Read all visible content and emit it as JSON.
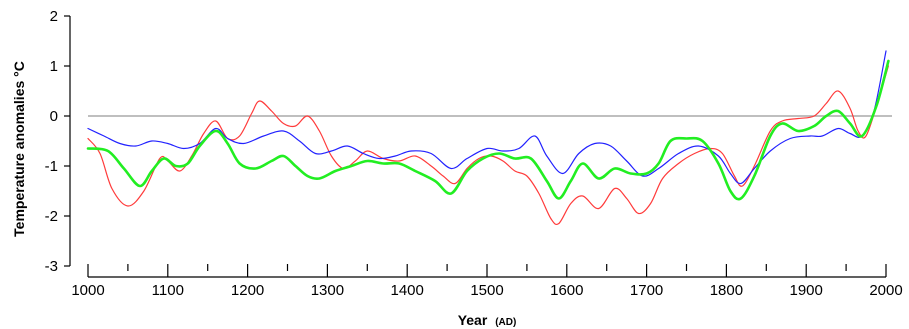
{
  "chart_data": {
    "type": "line",
    "title": "",
    "ylabel": "Temperature anomalies °C",
    "xlabel": {
      "main": "Year",
      "unit": "(AD)"
    },
    "xlim": [
      1000,
      2000
    ],
    "ylim": [
      -3,
      2
    ],
    "x_ticks": [
      1000,
      1100,
      1200,
      1300,
      1400,
      1500,
      1600,
      1700,
      1800,
      1900,
      2000
    ],
    "x_minor_ticks": [
      1050,
      1150,
      1250,
      1350,
      1450,
      1550,
      1650,
      1750,
      1850,
      1950
    ],
    "y_ticks": [
      -3,
      -2,
      -1,
      0,
      1,
      2
    ],
    "zero_line": true,
    "grid": false,
    "series": [
      {
        "color": "#ff3b3b",
        "points": [
          [
            1000,
            -0.45
          ],
          [
            1015,
            -0.75
          ],
          [
            1030,
            -1.45
          ],
          [
            1050,
            -1.8
          ],
          [
            1070,
            -1.5
          ],
          [
            1090,
            -0.85
          ],
          [
            1100,
            -0.9
          ],
          [
            1115,
            -1.1
          ],
          [
            1130,
            -0.8
          ],
          [
            1145,
            -0.35
          ],
          [
            1160,
            -0.1
          ],
          [
            1175,
            -0.45
          ],
          [
            1190,
            -0.4
          ],
          [
            1205,
            0.05
          ],
          [
            1215,
            0.3
          ],
          [
            1230,
            0.1
          ],
          [
            1245,
            -0.15
          ],
          [
            1260,
            -0.2
          ],
          [
            1275,
            0.0
          ],
          [
            1290,
            -0.3
          ],
          [
            1305,
            -0.8
          ],
          [
            1320,
            -1.05
          ],
          [
            1335,
            -0.9
          ],
          [
            1350,
            -0.7
          ],
          [
            1370,
            -0.85
          ],
          [
            1390,
            -0.9
          ],
          [
            1410,
            -0.8
          ],
          [
            1430,
            -1.0
          ],
          [
            1445,
            -1.2
          ],
          [
            1460,
            -1.35
          ],
          [
            1475,
            -1.05
          ],
          [
            1490,
            -0.85
          ],
          [
            1505,
            -0.8
          ],
          [
            1520,
            -0.9
          ],
          [
            1535,
            -1.1
          ],
          [
            1550,
            -1.2
          ],
          [
            1565,
            -1.55
          ],
          [
            1580,
            -2.05
          ],
          [
            1590,
            -2.15
          ],
          [
            1605,
            -1.75
          ],
          [
            1620,
            -1.6
          ],
          [
            1640,
            -1.85
          ],
          [
            1660,
            -1.45
          ],
          [
            1675,
            -1.65
          ],
          [
            1690,
            -1.95
          ],
          [
            1705,
            -1.75
          ],
          [
            1720,
            -1.25
          ],
          [
            1740,
            -0.95
          ],
          [
            1760,
            -0.75
          ],
          [
            1780,
            -0.65
          ],
          [
            1795,
            -0.75
          ],
          [
            1810,
            -1.2
          ],
          [
            1820,
            -1.4
          ],
          [
            1835,
            -1.0
          ],
          [
            1855,
            -0.3
          ],
          [
            1870,
            -0.1
          ],
          [
            1890,
            -0.05
          ],
          [
            1910,
            0.0
          ],
          [
            1925,
            0.25
          ],
          [
            1940,
            0.5
          ],
          [
            1955,
            0.15
          ],
          [
            1965,
            -0.3
          ],
          [
            1975,
            -0.4
          ],
          [
            1990,
            0.3
          ],
          [
            2003,
            1.0
          ]
        ]
      },
      {
        "color": "#2222ff",
        "points": [
          [
            1000,
            -0.25
          ],
          [
            1020,
            -0.4
          ],
          [
            1040,
            -0.55
          ],
          [
            1060,
            -0.6
          ],
          [
            1080,
            -0.5
          ],
          [
            1100,
            -0.55
          ],
          [
            1120,
            -0.65
          ],
          [
            1140,
            -0.55
          ],
          [
            1160,
            -0.25
          ],
          [
            1175,
            -0.45
          ],
          [
            1195,
            -0.55
          ],
          [
            1220,
            -0.4
          ],
          [
            1245,
            -0.3
          ],
          [
            1265,
            -0.5
          ],
          [
            1285,
            -0.75
          ],
          [
            1305,
            -0.7
          ],
          [
            1325,
            -0.6
          ],
          [
            1345,
            -0.75
          ],
          [
            1365,
            -0.85
          ],
          [
            1385,
            -0.8
          ],
          [
            1405,
            -0.7
          ],
          [
            1430,
            -0.75
          ],
          [
            1455,
            -1.05
          ],
          [
            1475,
            -0.85
          ],
          [
            1500,
            -0.65
          ],
          [
            1520,
            -0.7
          ],
          [
            1540,
            -0.65
          ],
          [
            1560,
            -0.4
          ],
          [
            1575,
            -0.8
          ],
          [
            1595,
            -1.15
          ],
          [
            1615,
            -0.75
          ],
          [
            1635,
            -0.55
          ],
          [
            1655,
            -0.6
          ],
          [
            1675,
            -0.9
          ],
          [
            1695,
            -1.2
          ],
          [
            1715,
            -1.05
          ],
          [
            1740,
            -0.75
          ],
          [
            1765,
            -0.6
          ],
          [
            1790,
            -0.8
          ],
          [
            1805,
            -1.15
          ],
          [
            1818,
            -1.35
          ],
          [
            1835,
            -1.05
          ],
          [
            1855,
            -0.7
          ],
          [
            1880,
            -0.45
          ],
          [
            1905,
            -0.4
          ],
          [
            1920,
            -0.4
          ],
          [
            1940,
            -0.25
          ],
          [
            1955,
            -0.35
          ],
          [
            1970,
            -0.4
          ],
          [
            1985,
            0.1
          ],
          [
            2000,
            1.3
          ]
        ]
      },
      {
        "color": "#22ee22",
        "points": [
          [
            1000,
            -0.65
          ],
          [
            1025,
            -0.7
          ],
          [
            1045,
            -1.05
          ],
          [
            1065,
            -1.4
          ],
          [
            1080,
            -1.1
          ],
          [
            1095,
            -0.85
          ],
          [
            1110,
            -1.0
          ],
          [
            1125,
            -0.95
          ],
          [
            1140,
            -0.6
          ],
          [
            1160,
            -0.3
          ],
          [
            1175,
            -0.55
          ],
          [
            1190,
            -0.95
          ],
          [
            1210,
            -1.05
          ],
          [
            1230,
            -0.9
          ],
          [
            1245,
            -0.8
          ],
          [
            1260,
            -1.0
          ],
          [
            1275,
            -1.2
          ],
          [
            1290,
            -1.25
          ],
          [
            1310,
            -1.1
          ],
          [
            1330,
            -1.0
          ],
          [
            1350,
            -0.9
          ],
          [
            1370,
            -0.95
          ],
          [
            1390,
            -0.95
          ],
          [
            1410,
            -1.1
          ],
          [
            1435,
            -1.3
          ],
          [
            1455,
            -1.55
          ],
          [
            1475,
            -1.1
          ],
          [
            1495,
            -0.85
          ],
          [
            1515,
            -0.75
          ],
          [
            1535,
            -0.85
          ],
          [
            1555,
            -0.85
          ],
          [
            1575,
            -1.3
          ],
          [
            1590,
            -1.65
          ],
          [
            1605,
            -1.3
          ],
          [
            1620,
            -0.95
          ],
          [
            1640,
            -1.25
          ],
          [
            1660,
            -1.05
          ],
          [
            1680,
            -1.15
          ],
          [
            1700,
            -1.15
          ],
          [
            1715,
            -0.95
          ],
          [
            1730,
            -0.5
          ],
          [
            1750,
            -0.45
          ],
          [
            1770,
            -0.5
          ],
          [
            1790,
            -0.95
          ],
          [
            1805,
            -1.5
          ],
          [
            1818,
            -1.65
          ],
          [
            1835,
            -1.2
          ],
          [
            1855,
            -0.4
          ],
          [
            1870,
            -0.15
          ],
          [
            1890,
            -0.3
          ],
          [
            1910,
            -0.2
          ],
          [
            1925,
            0.0
          ],
          [
            1940,
            0.1
          ],
          [
            1955,
            -0.15
          ],
          [
            1970,
            -0.4
          ],
          [
            1988,
            0.2
          ],
          [
            2003,
            1.1
          ]
        ]
      }
    ]
  }
}
